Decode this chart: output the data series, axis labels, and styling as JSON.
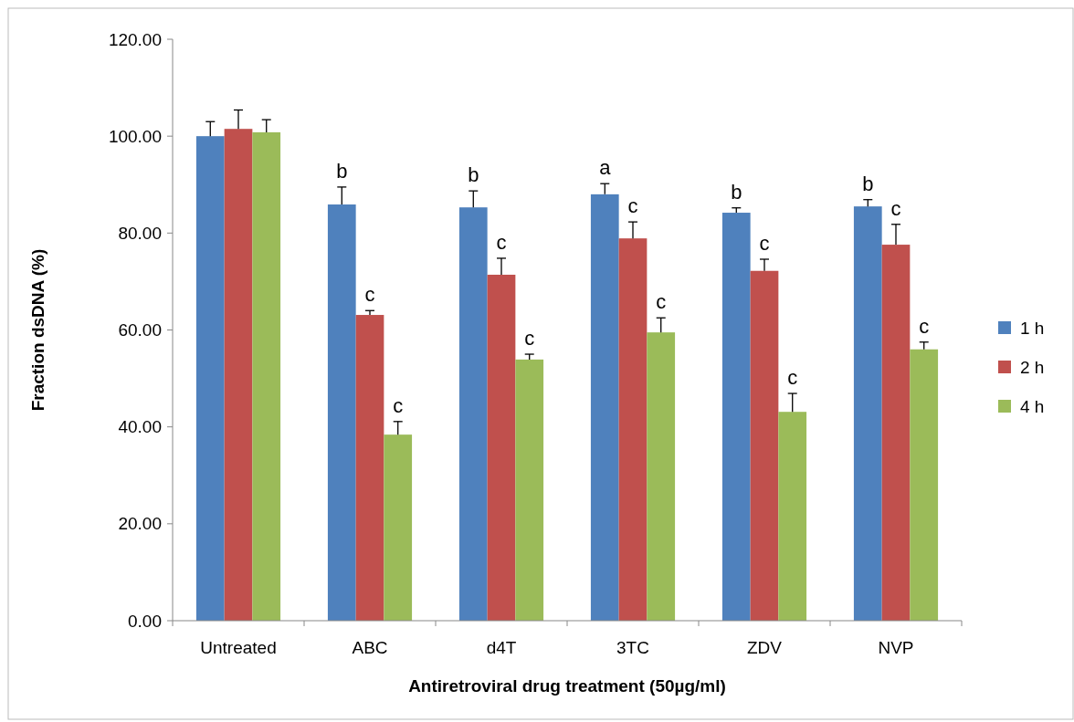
{
  "chart_data": {
    "type": "bar",
    "xlabel": "Antiretroviral drug treatment (50µg/ml)",
    "ylabel": "Fraction dsDNA (%)",
    "categories": [
      "Untreated",
      "ABC",
      "d4T",
      "3TC",
      "ZDV",
      "NVP"
    ],
    "series": [
      {
        "name": "1 h",
        "color": "#4f81bd",
        "values": [
          100.0,
          85.9,
          85.3,
          88.0,
          84.2,
          85.5
        ],
        "errors": [
          [
            100.0,
            103.0
          ],
          [
            85.9,
            89.5
          ],
          [
            85.3,
            88.7
          ],
          [
            88.0,
            90.2
          ],
          [
            84.2,
            85.2
          ],
          [
            85.5,
            86.9
          ]
        ],
        "value_labels": [
          null,
          "b",
          "b",
          "a",
          "b",
          "b"
        ]
      },
      {
        "name": "2 h",
        "color": "#c0504d",
        "values": [
          101.5,
          63.1,
          71.4,
          78.9,
          72.2,
          77.6
        ],
        "errors": [
          [
            101.5,
            105.4
          ],
          [
            63.1,
            64.0
          ],
          [
            71.4,
            74.8
          ],
          [
            78.9,
            82.3
          ],
          [
            72.2,
            74.6
          ],
          [
            77.6,
            81.8
          ]
        ],
        "value_labels": [
          null,
          "c",
          "c",
          "c",
          "c",
          "c"
        ]
      },
      {
        "name": "4 h",
        "color": "#9bbb59",
        "values": [
          100.8,
          38.4,
          53.9,
          59.5,
          43.1,
          56.0
        ],
        "errors": [
          [
            100.8,
            103.4
          ],
          [
            38.4,
            41.1
          ],
          [
            53.9,
            55.0
          ],
          [
            59.5,
            62.5
          ],
          [
            43.1,
            46.9
          ],
          [
            56.0,
            57.5
          ]
        ],
        "value_labels": [
          null,
          "c",
          "c",
          "c",
          "c",
          "c"
        ]
      }
    ],
    "ylim": [
      0,
      120
    ],
    "yticks": [
      {
        "value": 0,
        "label": "0.00"
      },
      {
        "value": 20,
        "label": "20.00"
      },
      {
        "value": 40,
        "label": "40.00"
      },
      {
        "value": 60,
        "label": "60.00"
      },
      {
        "value": 80,
        "label": "80.00"
      },
      {
        "value": 100,
        "label": "100.00"
      },
      {
        "value": 120,
        "label": "120.00"
      }
    ],
    "legend": "right",
    "grid": false
  }
}
